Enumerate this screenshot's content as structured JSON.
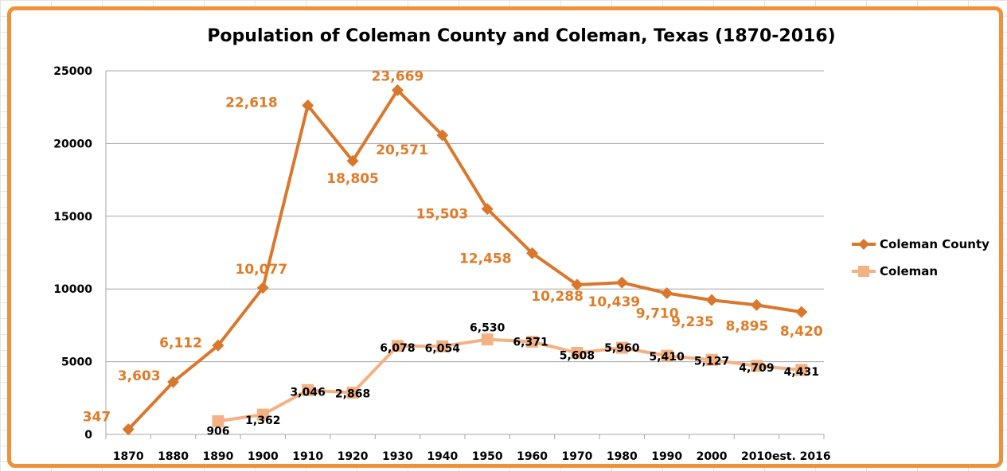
{
  "chart_data": {
    "type": "line",
    "title": "Population of Coleman County and Coleman, Texas (1870-2016)",
    "categories": [
      "1870",
      "1880",
      "1890",
      "1900",
      "1910",
      "1920",
      "1930",
      "1940",
      "1950",
      "1960",
      "1970",
      "1980",
      "1990",
      "2000",
      "2010",
      "est. 2016"
    ],
    "ylim": [
      0,
      25000
    ],
    "yticks": [
      "0",
      "5000",
      "10000",
      "15000",
      "20000",
      "25000"
    ],
    "grid": true,
    "legend_position": "right",
    "series": [
      {
        "name": "Coleman County",
        "color": "#d9782d",
        "marker": "diamond",
        "values": [
          347,
          3603,
          6112,
          10077,
          22618,
          18805,
          23669,
          20571,
          15503,
          12458,
          10288,
          10439,
          9710,
          9235,
          8895,
          8420
        ],
        "labels": [
          "347",
          "3,603",
          "6,112",
          "10,077",
          "22,618",
          "18,805",
          "23,669",
          "20,571",
          "15,503",
          "12,458",
          "10,288",
          "10,439",
          "9,710",
          "9,235",
          "8,895",
          "8,420"
        ]
      },
      {
        "name": "Coleman",
        "color": "#f4b183",
        "marker": "square",
        "values": [
          null,
          null,
          906,
          1362,
          3046,
          2868,
          6078,
          6054,
          6530,
          6371,
          5608,
          5960,
          5410,
          5127,
          4709,
          4431
        ],
        "labels": [
          null,
          null,
          "906",
          "1,362",
          "3,046",
          "2,868",
          "6,078",
          "6,054",
          "6,530",
          "6,371",
          "5,608",
          "5,960",
          "5,410",
          "5,127",
          "4,709",
          "4,431"
        ]
      }
    ]
  }
}
